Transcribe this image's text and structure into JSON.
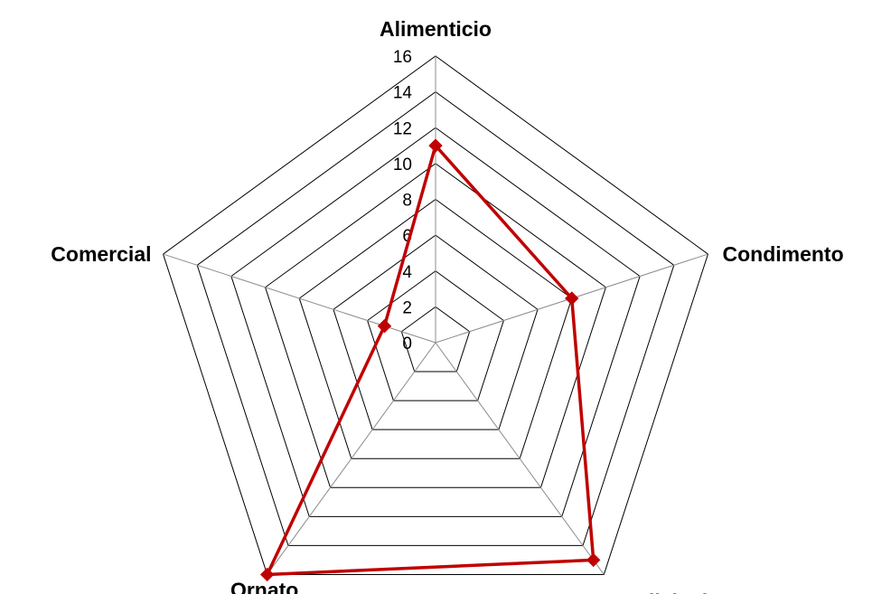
{
  "chart_data": {
    "type": "radar",
    "categories": [
      "Alimenticio",
      "Condimento",
      "Medicinal",
      "Ornato",
      "Comercial"
    ],
    "series": [
      {
        "values": [
          11,
          8,
          15,
          16,
          3
        ],
        "color": "#c00000",
        "marker": "diamond"
      }
    ],
    "rlim": [
      0,
      16
    ],
    "ticks": [
      "0",
      "2",
      "4",
      "6",
      "8",
      "10",
      "12",
      "14",
      "16"
    ],
    "tick_values": [
      0,
      2,
      4,
      6,
      8,
      10,
      12,
      14,
      16
    ],
    "grid": true,
    "legend": "none"
  }
}
